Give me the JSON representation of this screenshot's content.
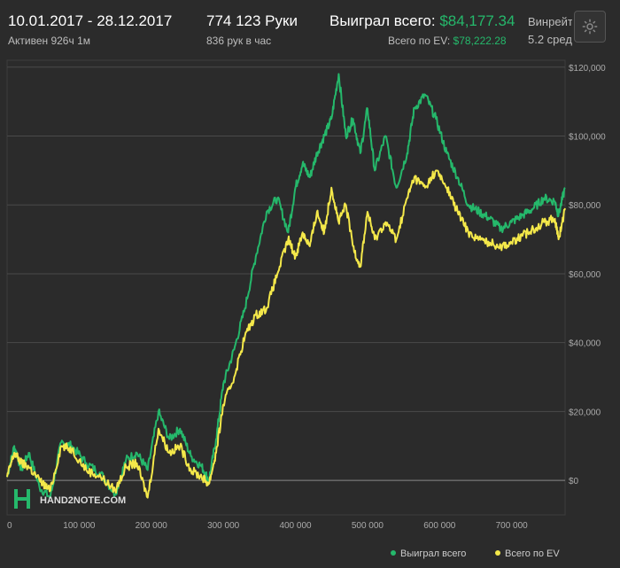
{
  "header": {
    "date_range": "10.01.2017 - 28.12.2017",
    "active_time": "Активен 926ч 1м",
    "hands": "774 123 Руки",
    "hands_per_hour": "836 рук в час",
    "won_label": "Выиграл всего:",
    "won_value": "$84,177.34",
    "ev_label": "Всего по EV:",
    "ev_value": "$78,222.28",
    "winrate_label": "Винрейт",
    "winrate_sub": "5.2 сред",
    "settings_icon": "gear-icon"
  },
  "logo": {
    "text": "HAND2NOTE.COM"
  },
  "colors": {
    "won": "#25b86b",
    "ev": "#f4e84a",
    "background": "#2b2b2b",
    "grid": "#4a4a4a",
    "zero_line": "#8a8a8a"
  },
  "chart_data": {
    "type": "line",
    "x_ticks": [
      "0",
      "100 000",
      "200 000",
      "300 000",
      "400 000",
      "500 000",
      "600 000",
      "700 000"
    ],
    "x_tick_values": [
      0,
      100000,
      200000,
      300000,
      400000,
      500000,
      600000,
      700000
    ],
    "y_ticks": [
      "$0",
      "$20,000",
      "$40,000",
      "$60,000",
      "$80,000",
      "$100,000",
      "$120,000"
    ],
    "y_tick_values": [
      0,
      20000,
      40000,
      60000,
      80000,
      100000,
      120000
    ],
    "xlim": [
      0,
      774123
    ],
    "ylim": [
      -10000,
      122000
    ],
    "grid": true,
    "legend_position": "bottom-right",
    "x": [
      0,
      10000,
      20000,
      30000,
      45000,
      60000,
      75000,
      90000,
      110000,
      130000,
      150000,
      165000,
      180000,
      195000,
      210000,
      225000,
      240000,
      255000,
      270000,
      280000,
      290000,
      300000,
      315000,
      330000,
      345000,
      360000,
      375000,
      390000,
      400000,
      410000,
      420000,
      430000,
      440000,
      450000,
      460000,
      470000,
      480000,
      490000,
      500000,
      510000,
      525000,
      540000,
      555000,
      565000,
      580000,
      595000,
      610000,
      625000,
      640000,
      655000,
      670000,
      685000,
      700000,
      715000,
      730000,
      745000,
      760000,
      765000,
      774123
    ],
    "series": [
      {
        "name": "Выиграл всего",
        "values": [
          1000,
          10000,
          3000,
          8000,
          -2000,
          -5000,
          11000,
          10000,
          5000,
          2000,
          -4000,
          6000,
          8000,
          3000,
          20000,
          12000,
          15000,
          7000,
          4000,
          0,
          12000,
          28000,
          38000,
          50000,
          65000,
          78000,
          82000,
          72000,
          85000,
          92000,
          88000,
          95000,
          100000,
          105000,
          118000,
          100000,
          105000,
          95000,
          108000,
          90000,
          100000,
          85000,
          95000,
          108000,
          112000,
          105000,
          95000,
          88000,
          80000,
          78000,
          76000,
          73000,
          75000,
          77000,
          79000,
          82000,
          81000,
          77000,
          85000
        ]
      },
      {
        "name": "Всего по EV",
        "values": [
          1000,
          8000,
          5000,
          4000,
          0,
          -3000,
          10000,
          9000,
          3000,
          1000,
          -3000,
          4000,
          5000,
          -5000,
          15000,
          8000,
          10000,
          3000,
          1000,
          -1000,
          8000,
          22000,
          30000,
          42000,
          48000,
          50000,
          60000,
          70000,
          65000,
          72000,
          68000,
          78000,
          72000,
          85000,
          75000,
          80000,
          68000,
          62000,
          78000,
          70000,
          75000,
          70000,
          82000,
          88000,
          85000,
          90000,
          85000,
          78000,
          72000,
          70000,
          69000,
          68000,
          69000,
          71000,
          73000,
          75000,
          76000,
          70000,
          79000
        ]
      }
    ]
  }
}
